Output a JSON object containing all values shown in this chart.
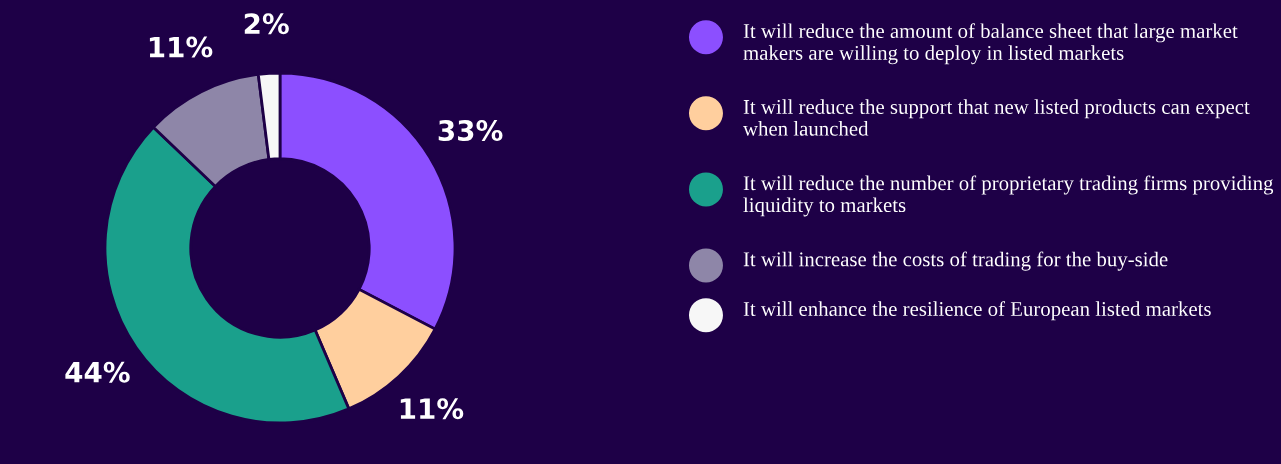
{
  "chart_data": {
    "type": "donut",
    "categories": [
      "It will reduce the amount of balance sheet that large market makers are willing to deploy in listed markets",
      "It will reduce the support that new listed products can expect when launched",
      "It will reduce the number of proprietary trading firms providing liquidity to markets",
      "It will increase the costs of trading for the buy-side",
      "It will enhance the resilience of European listed markets"
    ],
    "values": [
      33,
      11,
      44,
      11,
      2
    ],
    "colors": [
      "#8c4fff",
      "#ffcf9e",
      "#1aa08c",
      "#8e86a8",
      "#f7f7f7"
    ],
    "value_labels": [
      "33%",
      "11%",
      "44%",
      "11%",
      "2%"
    ],
    "legend": "right"
  }
}
